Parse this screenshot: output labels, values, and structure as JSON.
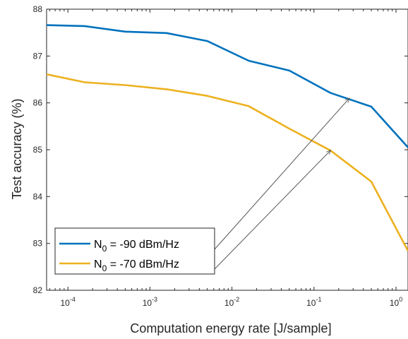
{
  "chart_data": {
    "type": "line",
    "xlabel": "Computation energy rate [J/sample]",
    "ylabel": "Test accuracy (%)",
    "xscale": "log",
    "xlim": [
      5.5e-05,
      1.4
    ],
    "ylim": [
      82,
      88
    ],
    "x_ticks": [
      {
        "value": 0.0001,
        "base": "10",
        "exp": "-4"
      },
      {
        "value": 0.001,
        "base": "10",
        "exp": "-3"
      },
      {
        "value": 0.01,
        "base": "10",
        "exp": "-2"
      },
      {
        "value": 0.1,
        "base": "10",
        "exp": "-1"
      },
      {
        "value": 1,
        "base": "10",
        "exp": "0"
      }
    ],
    "y_ticks": [
      "82",
      "83",
      "84",
      "85",
      "86",
      "87",
      "88"
    ],
    "grid": false,
    "legend_position": "bottom-left",
    "x": [
      5.5e-05,
      0.00016,
      0.0005,
      0.0016,
      0.005,
      0.016,
      0.05,
      0.16,
      0.5,
      1.4
    ],
    "series": [
      {
        "label_main": "N",
        "label_sub": "0",
        "label_rest": " = -90 dBm/Hz",
        "color": "#0072BD",
        "values": [
          87.66,
          87.64,
          87.52,
          87.49,
          87.32,
          86.9,
          86.69,
          86.21,
          85.92,
          85.05
        ]
      },
      {
        "label_main": "N",
        "label_sub": "0",
        "label_rest": " = -70 dBm/Hz",
        "color": "#EDB120",
        "values": [
          86.61,
          86.44,
          86.38,
          86.29,
          86.15,
          85.93,
          85.45,
          84.98,
          84.32,
          82.84
        ]
      }
    ],
    "annotations": [
      {
        "type": "arrow",
        "from_legend_series": 0,
        "to_x": 0.27,
        "to_y": 86.1
      },
      {
        "type": "arrow",
        "from_legend_series": 1,
        "to_x": 0.16,
        "to_y": 84.99
      }
    ]
  }
}
